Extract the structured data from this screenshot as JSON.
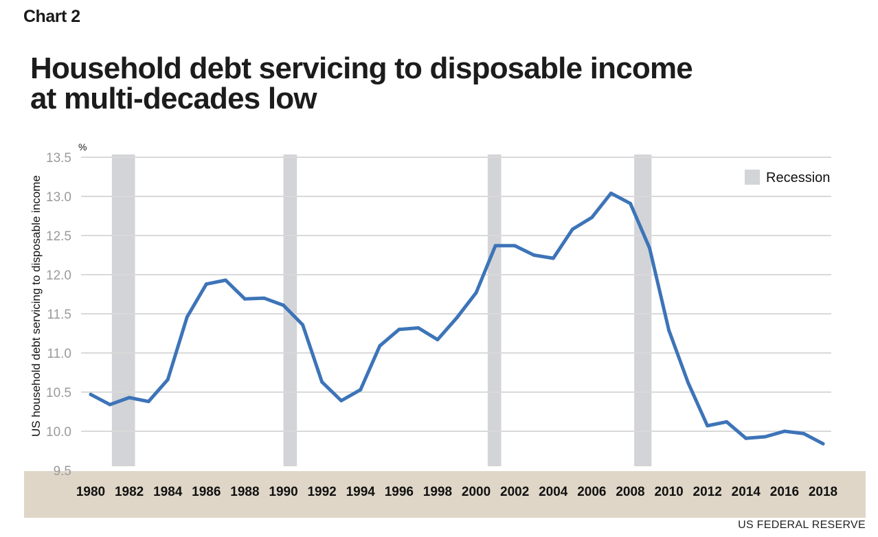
{
  "header": {
    "chart_label": "Chart 2",
    "title_line1": "Household debt servicing to disposable income",
    "title_line2": "at multi-decades low"
  },
  "source": "US FEDERAL RESERVE",
  "chart_data": {
    "type": "line",
    "title": "Household debt servicing to disposable income at multi-decades low",
    "ylabel": "US household debt servicing to disposable income",
    "yunit": "%",
    "ylim": [
      9.5,
      13.5
    ],
    "yticks": [
      "9.5",
      "10.0",
      "10.5",
      "11.0",
      "11.5",
      "12.0",
      "12.5",
      "13.0",
      "13.5"
    ],
    "xlim": [
      1980,
      2018
    ],
    "xticks": [
      "1980",
      "1982",
      "1984",
      "1986",
      "1988",
      "1990",
      "1992",
      "1994",
      "1996",
      "1998",
      "2000",
      "2002",
      "2004",
      "2006",
      "2008",
      "2010",
      "2012",
      "2014",
      "2016",
      "2018"
    ],
    "grid": true,
    "legend": {
      "placement": "top-right",
      "label": "Recession"
    },
    "recessions": [
      {
        "start": 1981.1,
        "end": 1982.3
      },
      {
        "start": 1990.0,
        "end": 1990.7
      },
      {
        "start": 2000.6,
        "end": 2001.3
      },
      {
        "start": 2008.2,
        "end": 2009.1
      }
    ],
    "series": [
      {
        "color": "#3d74b8",
        "points": [
          [
            1980,
            10.47
          ],
          [
            1981,
            10.34
          ],
          [
            1982,
            10.43
          ],
          [
            1983,
            10.38
          ],
          [
            1984,
            10.66
          ],
          [
            1985,
            11.46
          ],
          [
            1986,
            11.88
          ],
          [
            1987,
            11.93
          ],
          [
            1988,
            11.69
          ],
          [
            1989,
            11.7
          ],
          [
            1990,
            11.61
          ],
          [
            1991,
            11.36
          ],
          [
            1992,
            10.63
          ],
          [
            1993,
            10.39
          ],
          [
            1994,
            10.53
          ],
          [
            1995,
            11.09
          ],
          [
            1996,
            11.3
          ],
          [
            1997,
            11.32
          ],
          [
            1998,
            11.17
          ],
          [
            1999,
            11.45
          ],
          [
            2000,
            11.77
          ],
          [
            2001,
            12.37
          ],
          [
            2002,
            12.37
          ],
          [
            2003,
            12.25
          ],
          [
            2004,
            12.21
          ],
          [
            2005,
            12.58
          ],
          [
            2006,
            12.73
          ],
          [
            2007,
            13.04
          ],
          [
            2008,
            12.91
          ],
          [
            2009,
            12.34
          ],
          [
            2010,
            11.29
          ],
          [
            2011,
            10.62
          ],
          [
            2012,
            10.07
          ],
          [
            2013,
            10.12
          ],
          [
            2014,
            9.91
          ],
          [
            2015,
            9.93
          ],
          [
            2016,
            10.0
          ],
          [
            2017,
            9.97
          ],
          [
            2018,
            9.84
          ]
        ]
      }
    ]
  },
  "colors": {
    "line": "#3d74b8",
    "recession": "#d3d4d8",
    "x_band": "#dfd6c7",
    "grid": "#d9d9d9"
  }
}
